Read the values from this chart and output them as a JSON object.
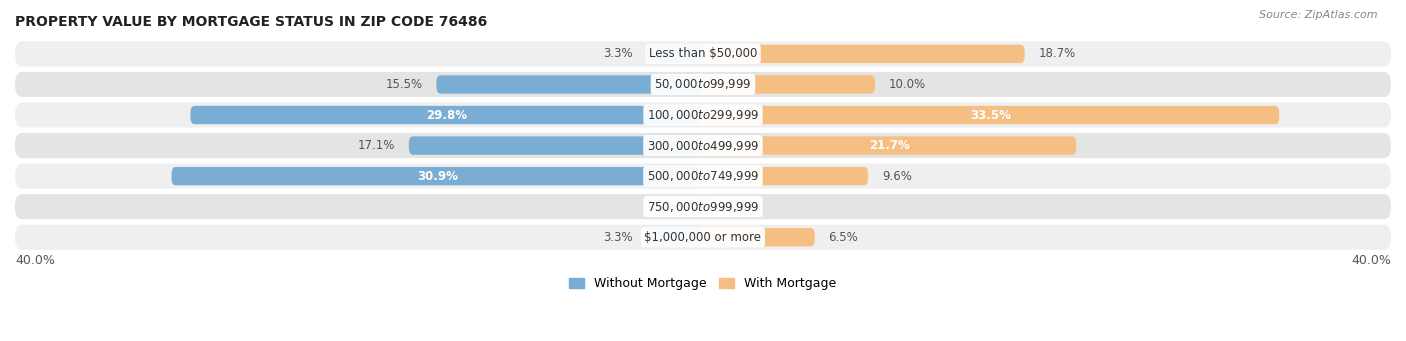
{
  "title": "PROPERTY VALUE BY MORTGAGE STATUS IN ZIP CODE 76486",
  "source": "Source: ZipAtlas.com",
  "categories": [
    "Less than $50,000",
    "$50,000 to $99,999",
    "$100,000 to $299,999",
    "$300,000 to $499,999",
    "$500,000 to $749,999",
    "$750,000 to $999,999",
    "$1,000,000 or more"
  ],
  "without_mortgage": [
    3.3,
    15.5,
    29.8,
    17.1,
    30.9,
    0.0,
    3.3
  ],
  "with_mortgage": [
    18.7,
    10.0,
    33.5,
    21.7,
    9.6,
    0.0,
    6.5
  ],
  "without_color": "#7aadd4",
  "with_color": "#f5be82",
  "xlim": 40.0,
  "row_bg_odd": "#efefef",
  "row_bg_even": "#e4e4e4",
  "title_fontsize": 10,
  "source_fontsize": 8,
  "label_fontsize": 8.5,
  "category_fontsize": 8.5,
  "legend_fontsize": 9,
  "axis_label_fontsize": 9
}
